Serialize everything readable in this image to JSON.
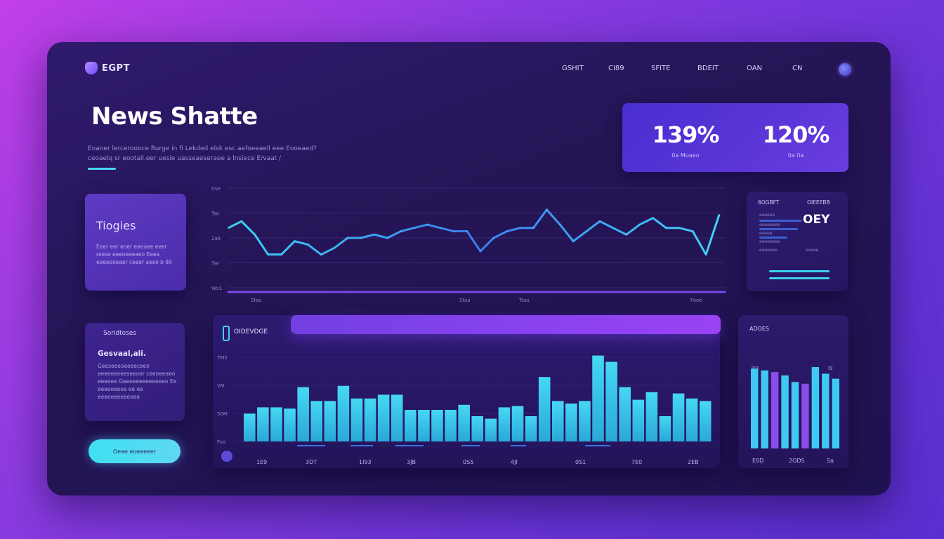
{
  "app": {
    "logo_text": "EGPT"
  },
  "nav": {
    "items": [
      {
        "label": "GSHIT"
      },
      {
        "label": "CI89"
      },
      {
        "label": "SFITE"
      },
      {
        "label": "BDEIT"
      },
      {
        "label": "OAN"
      },
      {
        "label": "CN"
      }
    ]
  },
  "hero": {
    "title": "News Shatte",
    "subtitle": "Eoaner lerceroooce Rurge in fi Lekded elsk esc aefoeeaell eee Eooeaed? ceoaelq sr eootail.eer uesie uasseaeseraee a lnsiece E/vaat /"
  },
  "stats": [
    {
      "value": "139%",
      "label": "0a Muaeo"
    },
    {
      "value": "120%",
      "label": "0a 0a"
    }
  ],
  "topics": {
    "title": "Tiogies",
    "text": "Eeer eer eoer eaeuee eeer reese eeeoeeeaeo Eeea eeeeeoeaer ceeer aeeo b 80"
  },
  "sources": {
    "title": "Soridteses",
    "subtitle": "Gesvaal,ali.",
    "text": "Geeseeeoaeeeceeo eeeeeeoeeseeoer ceeoeeaeo eeeeee Geeeeeeeeeeeeeo Ee eeeeeeeoe ee ee eeeeeeeeeeoee"
  },
  "cta": {
    "label": "Oeae eoeeeeer"
  },
  "chart_data": [
    {
      "type": "line",
      "x": [
        "",
        "",
        "",
        "",
        "",
        "",
        "",
        "",
        "",
        "",
        "",
        "",
        "",
        "",
        "",
        "",
        "",
        "",
        "",
        "",
        "",
        "",
        "",
        "",
        "",
        "",
        "",
        "",
        "",
        "",
        "",
        "",
        "",
        "",
        "",
        "",
        "",
        ""
      ],
      "ylim": [
        0,
        6
      ],
      "yticks": [
        "t/se",
        "Tse",
        "2a6",
        "Tse",
        "Ws1"
      ],
      "xticks": [
        "Sfas",
        "Sfaa",
        "Tsas",
        "Fooe"
      ],
      "series": [
        {
          "values": [
            3.6,
            4.0,
            3.2,
            2.0,
            2.0,
            2.8,
            2.6,
            2.0,
            2.4,
            3.0,
            3.0,
            3.2,
            3.0,
            3.4,
            3.6,
            3.8,
            3.6,
            3.4,
            3.4,
            2.2,
            3.0,
            3.4,
            3.6,
            3.6,
            4.7,
            3.8,
            2.8,
            3.4,
            4.0,
            3.6,
            3.2,
            3.8,
            4.2,
            3.6,
            3.6,
            3.4,
            2.0,
            4.4
          ]
        }
      ]
    },
    {
      "type": "bar",
      "values": [
        2.2,
        2.7,
        2.7,
        2.6,
        4.3,
        3.2,
        3.2,
        4.4,
        3.4,
        3.4,
        3.7,
        3.7,
        2.5,
        2.5,
        2.5,
        2.5,
        2.9,
        2.0,
        1.8,
        2.7,
        2.8,
        2.0,
        5.1,
        3.2,
        3.0,
        3.2,
        6.8,
        6.3,
        4.3,
        3.3,
        3.9,
        2.0,
        3.8,
        3.4,
        3.2
      ],
      "ylim": [
        0,
        7
      ],
      "yticks": [
        "TM5",
        "VM",
        "50M",
        "Foa"
      ],
      "xticks": [
        "1E9",
        "3DT",
        "1I93",
        "3JB",
        "0S5",
        "4JI",
        "0S1",
        "7E0",
        "2EB"
      ]
    },
    {
      "type": "bar",
      "title": "ADOES",
      "values": [
        4.8,
        4.7,
        4.6,
        4.4,
        4.0,
        3.9,
        4.9,
        4.5,
        4.2
      ],
      "ylim": [
        0,
        6
      ],
      "yticks": [
        "3I9",
        "I9"
      ],
      "xticks": [
        "E0D",
        "2ODS",
        "Sa"
      ]
    }
  ],
  "metrics": {
    "header_left": "6OGBFT",
    "header_right": "OIEEEBB",
    "value": "OEY",
    "labels": [
      "eeeeee",
      "eeeeeeee",
      "eeeee",
      "eeeeeeee",
      "eeeeeee",
      "eeeee"
    ]
  },
  "bar_panel": {
    "title": "OIDEVDGE"
  },
  "colors": {
    "accent_cyan": "#43d5f3",
    "accent_purple": "#8b42ef",
    "line_blue": "#3a7df0"
  }
}
